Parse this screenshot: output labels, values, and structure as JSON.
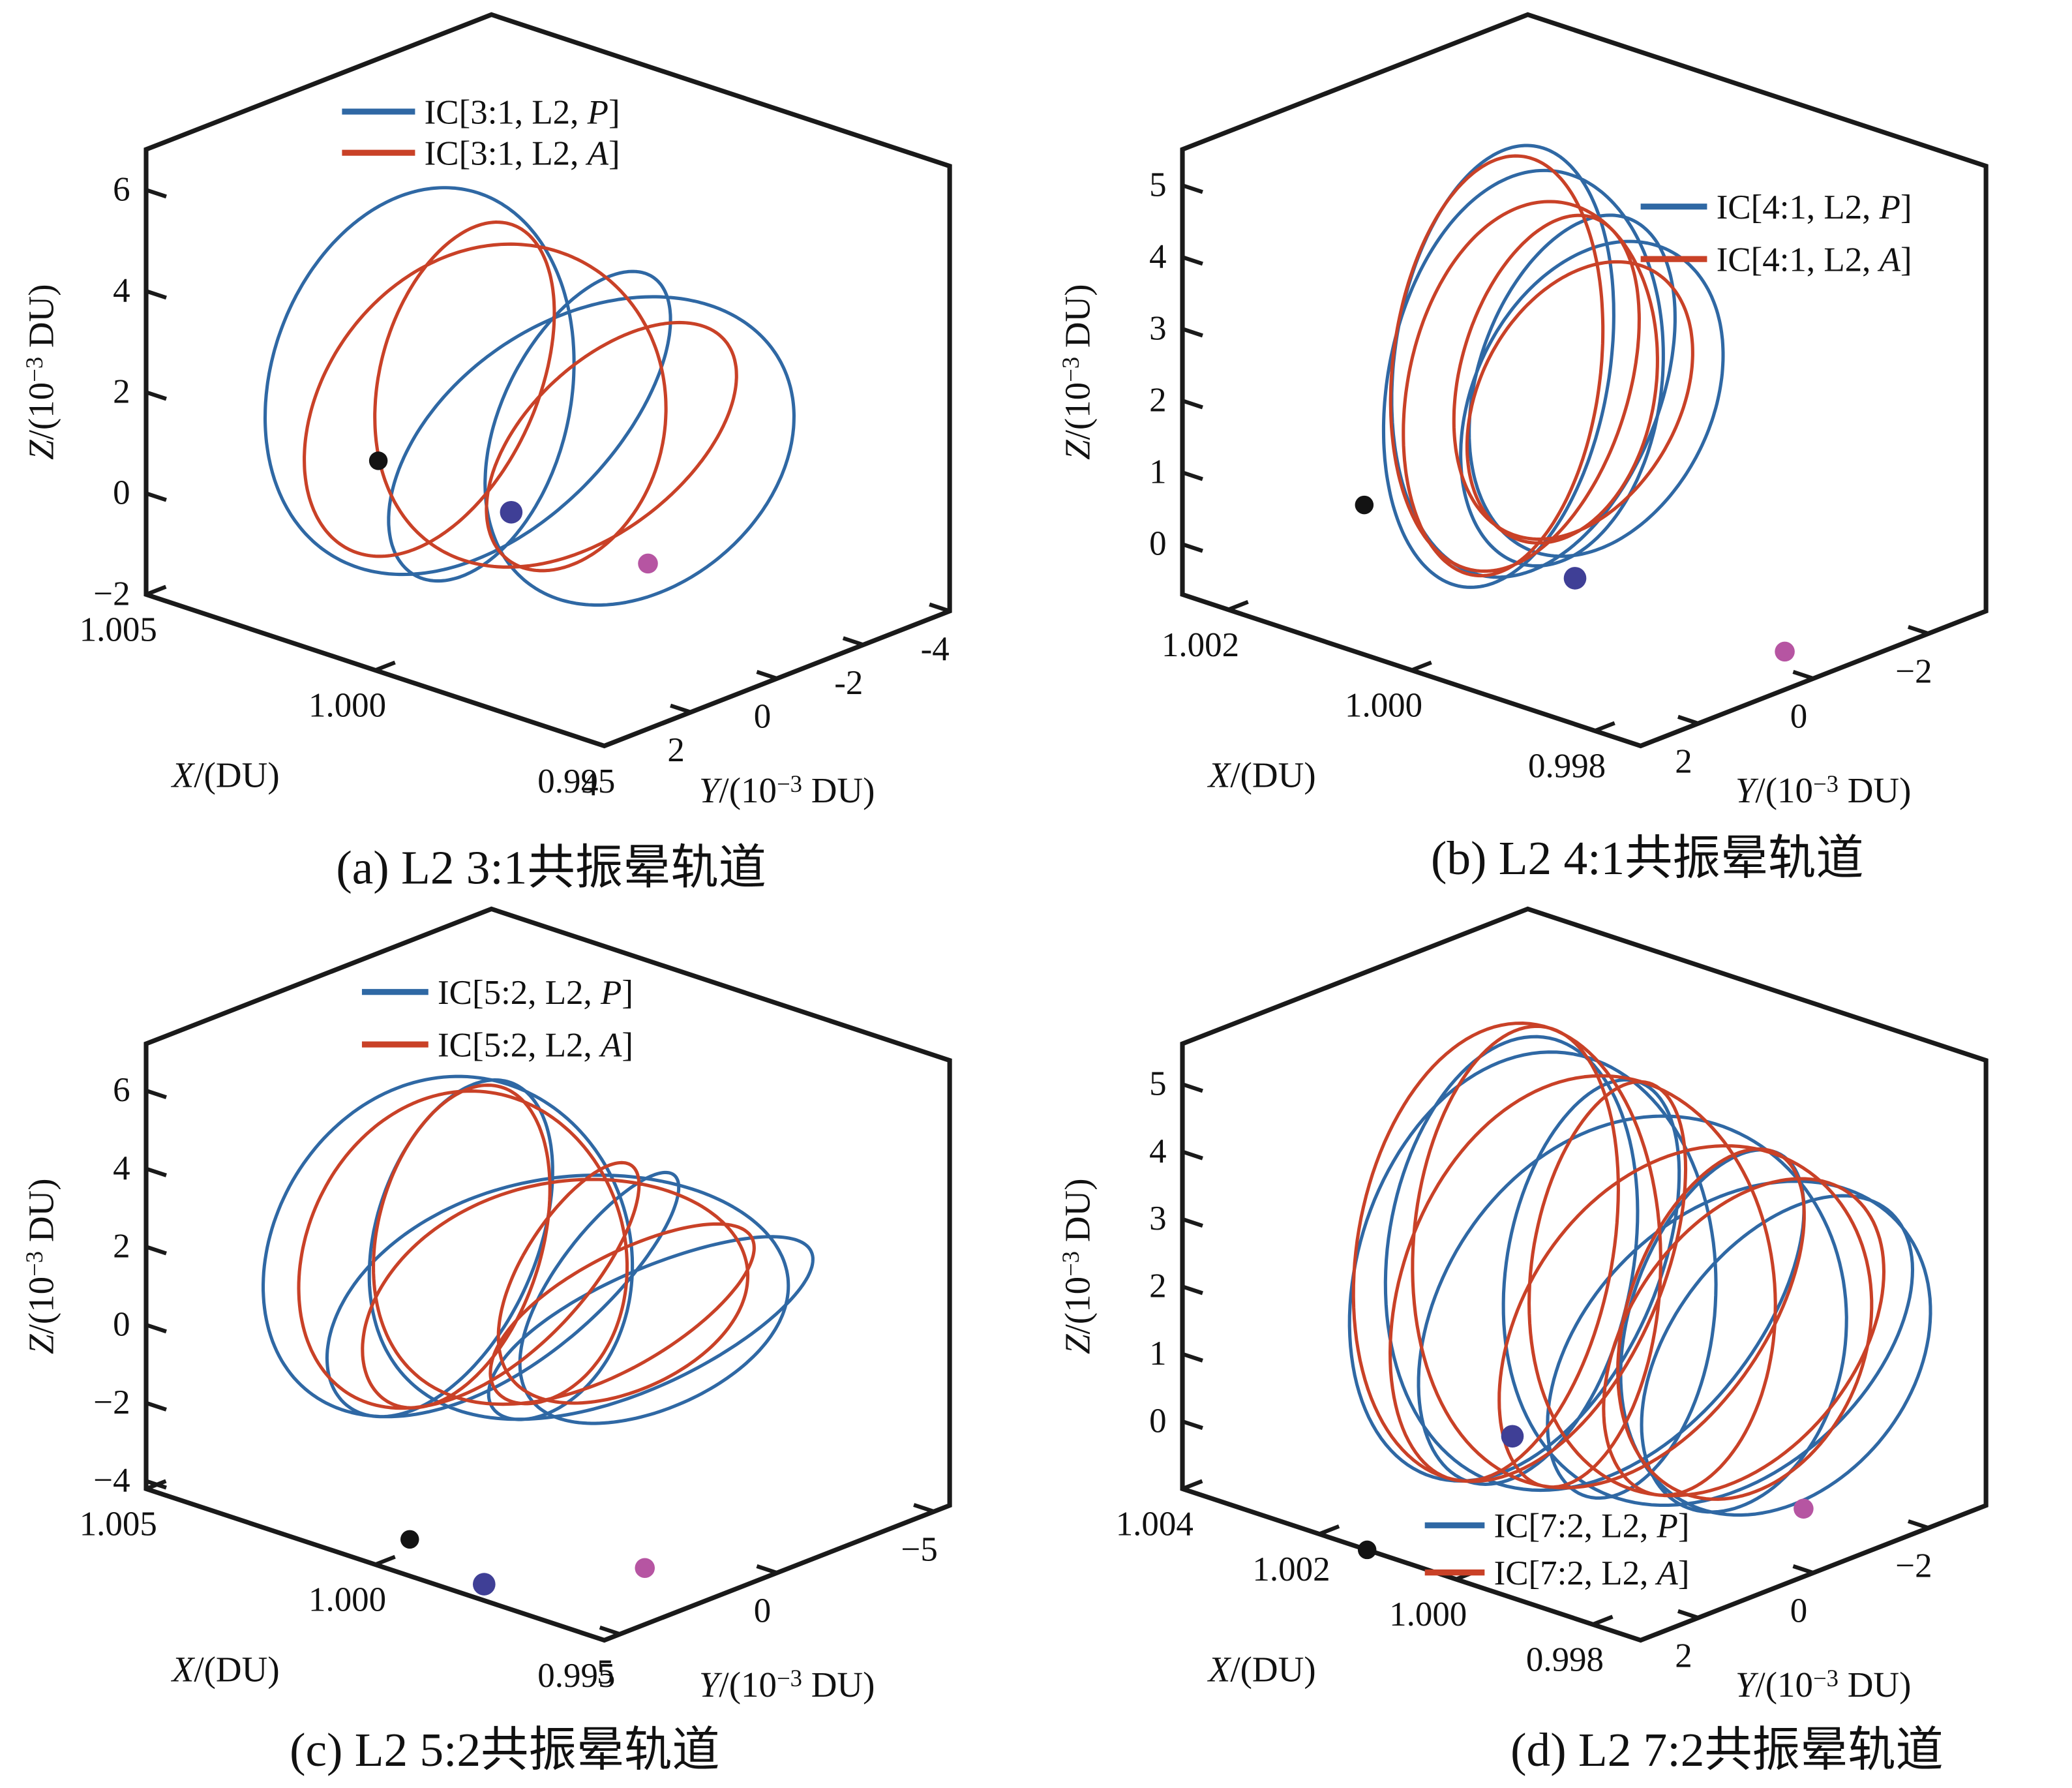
{
  "figure": {
    "type": "3d-orbit-figure",
    "rows": 2,
    "columns": 2,
    "description": "L2 resonant halo orbits in the rotating frame"
  },
  "colors": {
    "orbit_blue": "#2F68A4",
    "orbit_red": "#C94127",
    "marker_black": "#131313",
    "marker_navy": "#3F3F96",
    "marker_magenta": "#B655A2",
    "axis": "#1A1A1A"
  },
  "chart_data": [
    {
      "id": "a",
      "type": "line3d",
      "caption": "(a) L2 3:1共振晕轨道",
      "resonance": "3:1",
      "libration_point": "L2",
      "axes": {
        "x": {
          "label": {
            "variable": "X",
            "unit": "/(DU)"
          },
          "range": [
            0.995,
            1.005
          ],
          "ticks": [
            {
              "value": 1.005,
              "label": "1.005"
            },
            {
              "value": 1.0,
              "label": "1.000"
            },
            {
              "value": 0.995,
              "label": "0.995"
            }
          ]
        },
        "y": {
          "label": {
            "variable": "Y",
            "unit_prefix": "/(10",
            "exponent": "−3",
            "unit_suffix": " DU)"
          },
          "range": [
            -4,
            4
          ],
          "ticks": [
            {
              "value": 4,
              "label": "4"
            },
            {
              "value": 2,
              "label": "2"
            },
            {
              "value": 0,
              "label": "0"
            },
            {
              "value": -2,
              "label": "-2"
            },
            {
              "value": -4,
              "label": "-4"
            }
          ]
        },
        "z": {
          "label": {
            "variable": "Z",
            "unit_prefix": "/(10",
            "exponent": "−3",
            "unit_suffix": " DU)"
          },
          "range": [
            -2,
            6.8
          ],
          "ticks": [
            {
              "value": 6,
              "label": "6"
            },
            {
              "value": 4,
              "label": "4"
            },
            {
              "value": 2,
              "label": "2"
            },
            {
              "value": 0,
              "label": "0"
            },
            {
              "value": -2,
              "label": "−2"
            }
          ]
        }
      },
      "legend": [
        {
          "label": {
            "prefix": "IC[3:1, L2, ",
            "symbol": "P",
            "suffix": "]"
          },
          "color": "orbit_blue"
        },
        {
          "label": {
            "prefix": "IC[3:1, L2, ",
            "symbol": "A",
            "suffix": "]"
          },
          "color": "orbit_red"
        }
      ],
      "legend_pos": {
        "x": 515,
        "y": 168,
        "row_gap": 62,
        "line_len": 110,
        "text_gap": 14
      },
      "series": [
        {
          "name": "P",
          "color": "orbit_blue",
          "params": {
            "p": 3,
            "q": 1,
            "xc": 1.0004,
            "Ax": 0.0028,
            "phx": 2.0,
            "Ay": 3.4,
            "ph0": 0.0,
            "zc": 1.5,
            "Az": 3.1,
            "mz": 0.5,
            "phm": 2.0
          }
        },
        {
          "name": "A",
          "color": "orbit_red",
          "params": {
            "p": 3,
            "q": 1,
            "xc": 1.0006,
            "Ax": 0.0023,
            "phx": 3.3,
            "Ay": 3.0,
            "ph0": 0.8,
            "zc": 1.55,
            "Az": 2.8,
            "mz": 0.55,
            "phm": 3.3
          }
        }
      ],
      "markers": [
        {
          "name": "black-point",
          "color": "marker_black",
          "x": 1.0037,
          "y": 0,
          "z": -0.3,
          "r": 14
        },
        {
          "name": "navy-point",
          "color": "marker_navy",
          "x": 1.0008,
          "y": 0,
          "z": -0.45,
          "r": 17
        },
        {
          "name": "magenta-point",
          "color": "marker_magenta",
          "x": 0.9997,
          "y": -2.0,
          "z": -1.8,
          "r": 15
        }
      ]
    },
    {
      "id": "b",
      "type": "line3d",
      "caption": "(b) L2 4:1共振晕轨道",
      "resonance": "4:1",
      "libration_point": "L2",
      "axes": {
        "x": {
          "label": {
            "variable": "X",
            "unit": "/(DU)"
          },
          "range": [
            0.9975,
            1.0025
          ],
          "ticks": [
            {
              "value": 1.002,
              "label": "1.002"
            },
            {
              "value": 1.0,
              "label": "1.000"
            },
            {
              "value": 0.998,
              "label": "0.998"
            }
          ]
        },
        "y": {
          "label": {
            "variable": "Y",
            "unit_prefix": "/(10",
            "exponent": "−3",
            "unit_suffix": " DU)"
          },
          "range": [
            -3,
            3
          ],
          "ticks": [
            {
              "value": 2,
              "label": "2"
            },
            {
              "value": 0,
              "label": "0"
            },
            {
              "value": -2,
              "label": "−2"
            }
          ]
        },
        "z": {
          "label": {
            "variable": "Z",
            "unit_prefix": "/(10",
            "exponent": "−3",
            "unit_suffix": " DU)"
          },
          "range": [
            -0.7,
            5.5
          ],
          "ticks": [
            {
              "value": 5,
              "label": "5"
            },
            {
              "value": 4,
              "label": "4"
            },
            {
              "value": 3,
              "label": "3"
            },
            {
              "value": 2,
              "label": "2"
            },
            {
              "value": 1,
              "label": "1"
            },
            {
              "value": 0,
              "label": "0"
            }
          ]
        }
      },
      "legend": [
        {
          "label": {
            "prefix": "IC[4:1, L2, ",
            "symbol": "P",
            "suffix": "]"
          },
          "color": "orbit_blue"
        },
        {
          "label": {
            "prefix": "IC[4:1, L2, ",
            "symbol": "A",
            "suffix": "]"
          },
          "color": "orbit_red"
        }
      ],
      "legend_pos": {
        "x": 910,
        "y": 311,
        "row_gap": 79,
        "line_len": 100,
        "text_gap": 14
      },
      "series": [
        {
          "name": "P",
          "color": "orbit_blue",
          "params": {
            "p": 4,
            "q": 1,
            "xc": 1.0004,
            "Ax": 0.0006,
            "phx": 0.5,
            "Ay": 2.1,
            "ph0": 0.0,
            "zc": 2.2,
            "Az": 2.55,
            "mz": 0.5,
            "phm": 0.5
          }
        },
        {
          "name": "A",
          "color": "orbit_red",
          "params": {
            "p": 4,
            "q": 1,
            "xc": 1.0005,
            "Ax": 0.0005,
            "phx": 1.9,
            "Ay": 1.9,
            "ph0": 0.55,
            "zc": 2.15,
            "Az": 2.35,
            "mz": 0.55,
            "phm": 1.9
          }
        }
      ],
      "markers": [
        {
          "name": "black-point",
          "color": "marker_black",
          "x": 1.0024,
          "y": 0,
          "z": -0.35,
          "r": 14
        },
        {
          "name": "navy-point",
          "color": "marker_navy",
          "x": 1.0001,
          "y": 0,
          "z": -0.4,
          "r": 17
        },
        {
          "name": "magenta-point",
          "color": "marker_magenta",
          "x": 0.998,
          "y": -0.3,
          "z": -0.63,
          "r": 15
        }
      ]
    },
    {
      "id": "c",
      "type": "line3d",
      "caption": "(c) L2 5:2共振晕轨道",
      "resonance": "5:2",
      "libration_point": "L2",
      "axes": {
        "x": {
          "label": {
            "variable": "X",
            "unit": "/(DU)"
          },
          "range": [
            0.995,
            1.005
          ],
          "ticks": [
            {
              "value": 1.005,
              "label": "1.005"
            },
            {
              "value": 1.0,
              "label": "1.000"
            },
            {
              "value": 0.995,
              "label": "0.995"
            }
          ]
        },
        "y": {
          "label": {
            "variable": "Y",
            "unit_prefix": "/(10",
            "exponent": "−3",
            "unit_suffix": " DU)"
          },
          "range": [
            -5.5,
            5.5
          ],
          "ticks": [
            {
              "value": 5,
              "label": "5"
            },
            {
              "value": 0,
              "label": "0"
            },
            {
              "value": -5,
              "label": "−5"
            }
          ]
        },
        "z": {
          "label": {
            "variable": "Z",
            "unit_prefix": "/(10",
            "exponent": "−3",
            "unit_suffix": " DU)"
          },
          "range": [
            -4.2,
            7.2
          ],
          "ticks": [
            {
              "value": 6,
              "label": "6"
            },
            {
              "value": 4,
              "label": "4"
            },
            {
              "value": 2,
              "label": "2"
            },
            {
              "value": 0,
              "label": "0"
            },
            {
              "value": -2,
              "label": "−2"
            },
            {
              "value": -4,
              "label": "−4"
            }
          ]
        }
      },
      "legend": [
        {
          "label": {
            "prefix": "IC[5:2, L2, ",
            "symbol": "P",
            "suffix": "]"
          },
          "color": "orbit_blue"
        },
        {
          "label": {
            "prefix": "IC[5:2, L2, ",
            "symbol": "A",
            "suffix": "]"
          },
          "color": "orbit_red"
        }
      ],
      "legend_pos": {
        "x": 545,
        "y": 147,
        "row_gap": 79,
        "line_len": 100,
        "text_gap": 14
      },
      "series": [
        {
          "name": "P",
          "color": "orbit_blue",
          "params": {
            "p": 5,
            "q": 2,
            "xc": 1.0001,
            "Ax": 0.003,
            "phx": 0.8,
            "Ay": 4.6,
            "ph0": 0.0,
            "zc": 1.2,
            "Az": 3.1,
            "mz": 1.2,
            "phm": 0.8
          }
        },
        {
          "name": "A",
          "color": "orbit_red",
          "params": {
            "p": 5,
            "q": 2,
            "xc": 1.0003,
            "Ax": 0.0024,
            "phx": 2.2,
            "Ay": 4.0,
            "ph0": 0.65,
            "zc": 1.3,
            "Az": 3.0,
            "mz": 1.1,
            "phm": 2.2
          }
        }
      ],
      "markers": [
        {
          "name": "black-point",
          "color": "marker_black",
          "x": 1.0,
          "y": 4.4,
          "z": -3.9,
          "r": 14
        },
        {
          "name": "navy-point",
          "color": "marker_navy",
          "x": 0.998,
          "y": 4.95,
          "z": -4.1,
          "r": 17
        },
        {
          "name": "magenta-point",
          "color": "marker_magenta",
          "x": 0.996,
          "y": 2.75,
          "z": -3.6,
          "r": 15
        }
      ]
    },
    {
      "id": "d",
      "type": "line3d",
      "caption": "(d) L2 7:2共振晕轨道",
      "resonance": "7:2",
      "libration_point": "L2",
      "axes": {
        "x": {
          "label": {
            "variable": "X",
            "unit": "/(DU)"
          },
          "range": [
            0.9973,
            1.004
          ],
          "ticks": [
            {
              "value": 1.004,
              "label": "1.004"
            },
            {
              "value": 1.002,
              "label": "1.002"
            },
            {
              "value": 1.0,
              "label": "1.000"
            },
            {
              "value": 0.998,
              "label": "0.998"
            }
          ]
        },
        "y": {
          "label": {
            "variable": "Y",
            "unit_prefix": "/(10",
            "exponent": "−3",
            "unit_suffix": " DU)"
          },
          "range": [
            -3,
            3
          ],
          "ticks": [
            {
              "value": 2,
              "label": "2"
            },
            {
              "value": 0,
              "label": "0"
            },
            {
              "value": -2,
              "label": "−2"
            }
          ]
        },
        "z": {
          "label": {
            "variable": "Z",
            "unit_prefix": "/(10",
            "exponent": "−3",
            "unit_suffix": " DU)"
          },
          "range": [
            -1.0,
            5.6
          ],
          "ticks": [
            {
              "value": 5,
              "label": "5"
            },
            {
              "value": 4,
              "label": "4"
            },
            {
              "value": 3,
              "label": "3"
            },
            {
              "value": 2,
              "label": "2"
            },
            {
              "value": 1,
              "label": "1"
            },
            {
              "value": 0,
              "label": "0"
            }
          ]
        }
      },
      "legend": [
        {
          "label": {
            "prefix": "IC[7:2, L2, ",
            "symbol": "P",
            "suffix": "]"
          },
          "color": "orbit_blue"
        },
        {
          "label": {
            "prefix": "IC[7:2, L2, ",
            "symbol": "A",
            "suffix": "]"
          },
          "color": "orbit_red"
        }
      ],
      "legend_pos": {
        "x": 585,
        "y": 950,
        "row_gap": 71,
        "line_len": 90,
        "text_gap": 14
      },
      "series": [
        {
          "name": "P",
          "color": "orbit_blue",
          "params": {
            "p": 7,
            "q": 2,
            "xc": 0.9998,
            "Ax": 0.0022,
            "phx": 0.3,
            "Ay": 2.5,
            "ph0": 0.0,
            "zc": 2.1,
            "Az": 2.7,
            "mz": 0.5,
            "phm": 0.3
          }
        },
        {
          "name": "A",
          "color": "orbit_red",
          "params": {
            "p": 7,
            "q": 2,
            "xc": 1.0001,
            "Ax": 0.002,
            "phx": 1.6,
            "Ay": 2.3,
            "ph0": 0.5,
            "zc": 2.2,
            "Az": 2.8,
            "mz": 0.55,
            "phm": 1.6
          }
        }
      ],
      "markers": [
        {
          "name": "black-point",
          "color": "marker_black",
          "x": 1.0013,
          "y": 3.0,
          "z": -1.0,
          "r": 14
        },
        {
          "name": "navy-point",
          "color": "marker_navy",
          "x": 1.0017,
          "y": 0,
          "z": -0.45,
          "r": 17
        },
        {
          "name": "magenta-point",
          "color": "marker_magenta",
          "x": 0.9982,
          "y": -0.9,
          "z": -0.65,
          "r": 15
        }
      ]
    }
  ]
}
